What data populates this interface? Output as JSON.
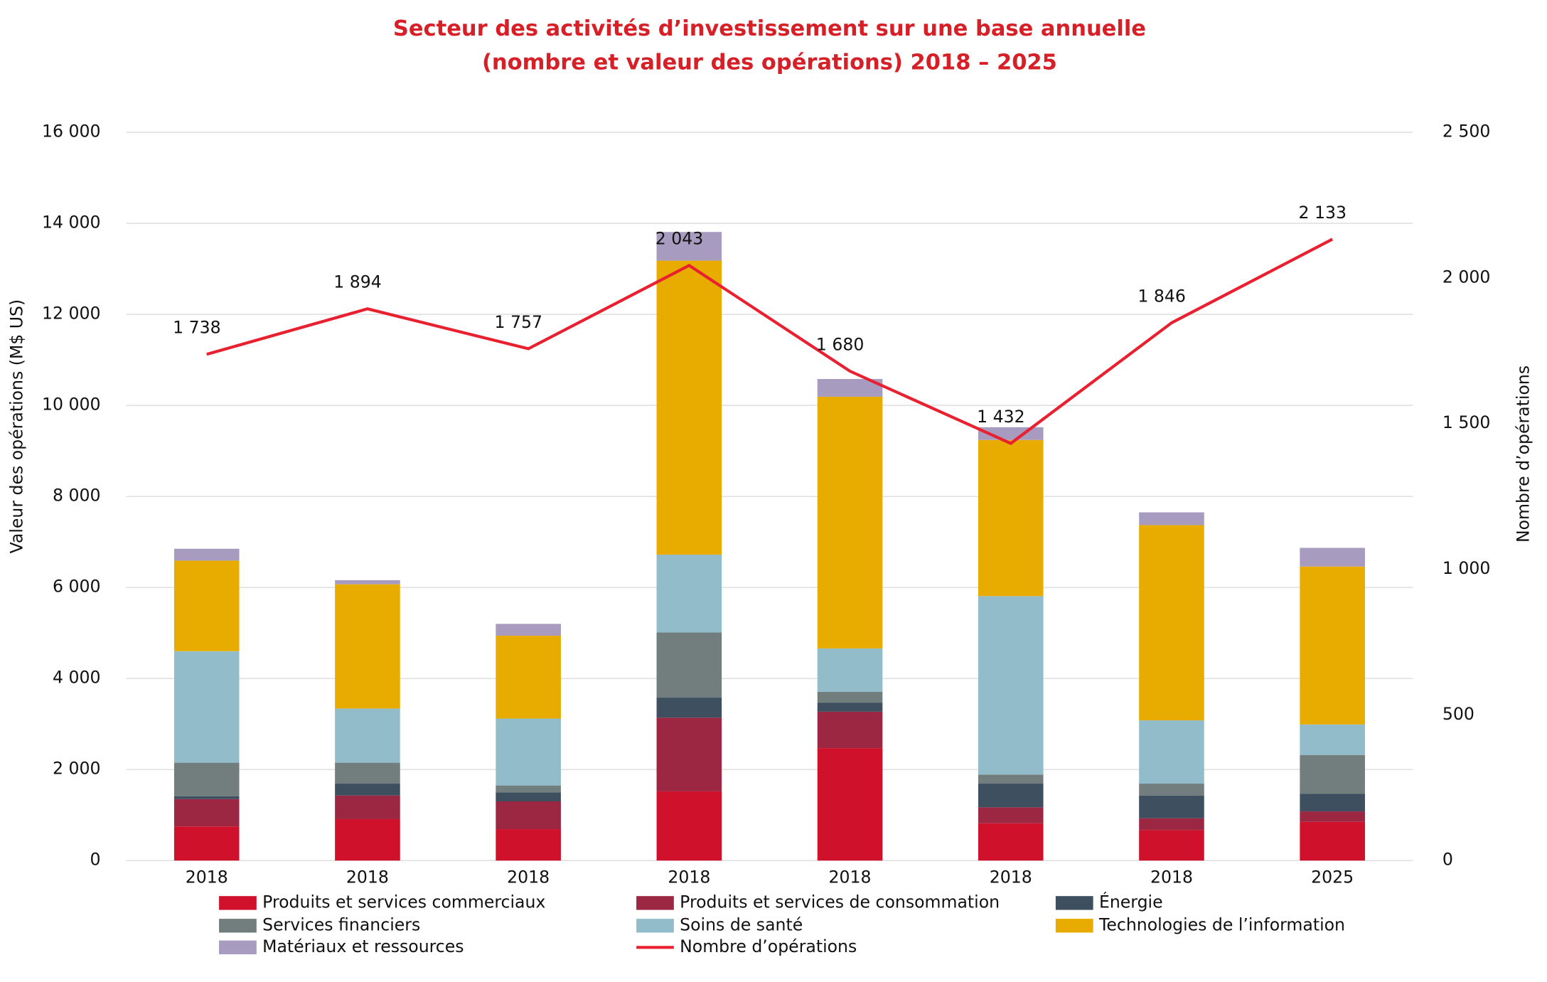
{
  "chart_data": {
    "type": "bar",
    "stacked": true,
    "title": [
      "Secteur des activités d’investissement sur une base annuelle",
      "(nombre et valeur des opérations) 2018 – 2025"
    ],
    "y_label": "Valeur des opérations (M$ US)",
    "y2_label": "Nombre d’opérations",
    "categories": [
      "2018",
      "2018",
      "2018",
      "2018",
      "2018",
      "2018",
      "2018",
      "2025"
    ],
    "ylim": [
      0,
      16000
    ],
    "yticks": [
      {
        "value": 0,
        "label": "0"
      },
      {
        "value": 2000,
        "label": "2 000"
      },
      {
        "value": 4000,
        "label": "4 000"
      },
      {
        "value": 6000,
        "label": "6 000"
      },
      {
        "value": 8000,
        "label": "8 000"
      },
      {
        "value": 10000,
        "label": "10 000"
      },
      {
        "value": 12000,
        "label": "12 000"
      },
      {
        "value": 14000,
        "label": "14 000"
      },
      {
        "value": 16000,
        "label": "16 000"
      }
    ],
    "y2lim": [
      0,
      2500
    ],
    "y2ticks": [
      0,
      500,
      {
        "value": 1000,
        "label": "1 000"
      },
      {
        "value": 1500,
        "label": "1 500"
      },
      {
        "value": 2000,
        "label": "2 000"
      },
      {
        "value": 2500,
        "label": "2 500"
      }
    ],
    "grid": true,
    "series": [
      {
        "name": "Produits et services commerciaux",
        "color": "#d0112b",
        "values": [
          750,
          910,
          690,
          1520,
          2470,
          820,
          670,
          850
        ]
      },
      {
        "name": "Produits et services de consommation",
        "color": "#9b2743",
        "values": [
          600,
          520,
          610,
          1620,
          800,
          350,
          260,
          230
        ]
      },
      {
        "name": "Énergie",
        "color": "#3e5060",
        "values": [
          60,
          260,
          200,
          440,
          200,
          520,
          500,
          390
        ]
      },
      {
        "name": "Services financiers",
        "color": "#717e7d",
        "values": [
          740,
          460,
          150,
          1430,
          240,
          200,
          260,
          850
        ]
      },
      {
        "name": "Soins de santé",
        "color": "#93bccb",
        "values": [
          2450,
          1190,
          1470,
          1710,
          950,
          3920,
          1390,
          670
        ]
      },
      {
        "name": "Technologies de l’information",
        "color": "#e8ac00",
        "values": [
          1990,
          2730,
          1820,
          6460,
          5530,
          3430,
          4290,
          3470
        ]
      },
      {
        "name": "Matériaux et ressources",
        "color": "#a79bbf",
        "values": [
          260,
          90,
          260,
          630,
          390,
          280,
          280,
          410
        ]
      },
      {
        "name": "Nombre d’opérations",
        "color": "#e8202f",
        "type": "line",
        "axis": "y2",
        "values": [
          1738,
          1894,
          1757,
          2043,
          1680,
          1432,
          1846,
          2133
        ],
        "value_labels": [
          "1 738",
          "1 894",
          "1 757",
          "2 043",
          "1 680",
          "1 432",
          "1 846",
          "2 133"
        ]
      }
    ]
  }
}
